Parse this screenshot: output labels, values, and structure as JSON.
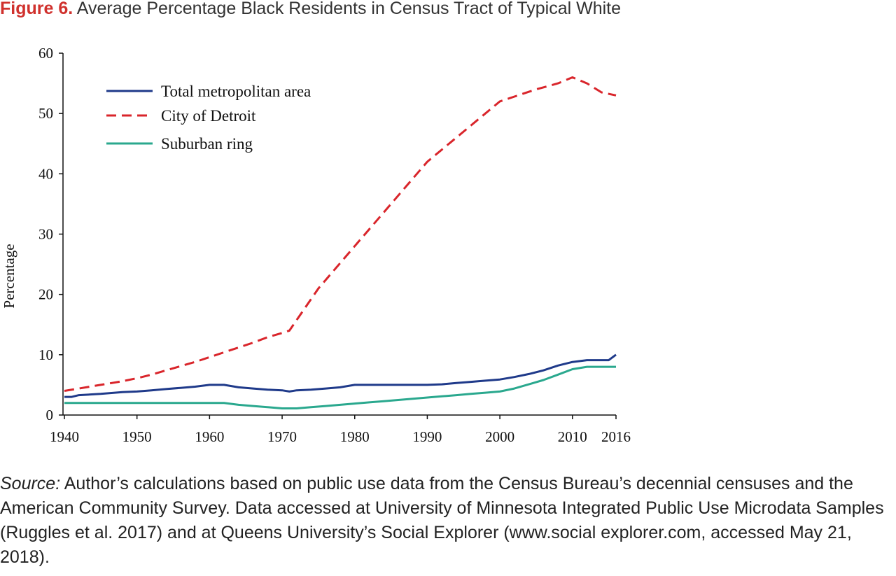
{
  "figure": {
    "number": "Figure 6.",
    "title": "Average Percentage Black Residents in Census Tract of Typical White"
  },
  "source": {
    "lead": "Source:",
    "text": " Author’s calculations based on public use data from the Census Bureau’s decennial censuses and the American Community Survey. Data accessed at University of Minnesota Integrated Public Use Microdata Samples (Ruggles et al. 2017) and at Queens University’s Social Explorer (www.social explorer.com, accessed May 21, 2018)."
  },
  "chart_data": {
    "type": "line",
    "title": "",
    "xlabel": "",
    "ylabel": "Percentage",
    "xlim": [
      1940,
      2016
    ],
    "ylim": [
      0,
      60
    ],
    "x_ticks": [
      "1940",
      "1950",
      "1960",
      "1970",
      "1980",
      "1990",
      "2000",
      "2010",
      "2016"
    ],
    "y_ticks": [
      "0",
      "10",
      "20",
      "30",
      "40",
      "50",
      "60"
    ],
    "grid": false,
    "legend_position": "top-left",
    "series": [
      {
        "name": "Total metropolitan area",
        "color": "#1f3a8a",
        "style": "solid",
        "x": [
          1940,
          1941,
          1942,
          1945,
          1948,
          1950,
          1952,
          1954,
          1956,
          1958,
          1960,
          1962,
          1964,
          1966,
          1968,
          1970,
          1971,
          1972,
          1974,
          1976,
          1978,
          1980,
          1985,
          1990,
          1992,
          1994,
          1996,
          1998,
          2000,
          2002,
          2004,
          2006,
          2008,
          2010,
          2012,
          2014,
          2015,
          2016
        ],
        "y": [
          3,
          3,
          3.3,
          3.5,
          3.8,
          3.9,
          4.1,
          4.3,
          4.5,
          4.7,
          5,
          5,
          4.6,
          4.4,
          4.2,
          4.1,
          3.9,
          4.1,
          4.2,
          4.4,
          4.6,
          5,
          5,
          5,
          5.1,
          5.3,
          5.5,
          5.7,
          5.9,
          6.3,
          6.8,
          7.4,
          8.2,
          8.8,
          9.1,
          9.1,
          9.1,
          10
        ]
      },
      {
        "name": "City of Detroit",
        "color": "#d9252b",
        "style": "dashed",
        "x": [
          1940,
          1942,
          1944,
          1946,
          1948,
          1950,
          1952,
          1954,
          1956,
          1958,
          1960,
          1962,
          1964,
          1966,
          1968,
          1970,
          1971,
          1975,
          1980,
          1985,
          1990,
          1995,
          2000,
          2005,
          2008,
          2010,
          2012,
          2014,
          2016
        ],
        "y": [
          4,
          4.4,
          4.8,
          5.2,
          5.6,
          6.1,
          6.7,
          7.4,
          8.1,
          8.8,
          9.6,
          10.4,
          11.2,
          12,
          12.9,
          13.6,
          14,
          21,
          28,
          35,
          42,
          47,
          52,
          54,
          55,
          56,
          55,
          53.5,
          53
        ]
      },
      {
        "name": " Suburban ring",
        "color": "#2aa88e",
        "style": "solid",
        "x": [
          1940,
          1945,
          1950,
          1955,
          1960,
          1962,
          1964,
          1966,
          1968,
          1970,
          1972,
          1974,
          1976,
          1978,
          1980,
          1982,
          1984,
          1986,
          1988,
          1990,
          1992,
          1994,
          1996,
          1998,
          2000,
          2002,
          2004,
          2006,
          2008,
          2010,
          2012,
          2014,
          2016
        ],
        "y": [
          2,
          2,
          2,
          2,
          2,
          2,
          1.7,
          1.5,
          1.3,
          1.1,
          1.1,
          1.3,
          1.5,
          1.7,
          1.9,
          2.1,
          2.3,
          2.5,
          2.7,
          2.9,
          3.1,
          3.3,
          3.5,
          3.7,
          3.9,
          4.4,
          5.1,
          5.8,
          6.7,
          7.6,
          8,
          8,
          8
        ]
      }
    ]
  }
}
